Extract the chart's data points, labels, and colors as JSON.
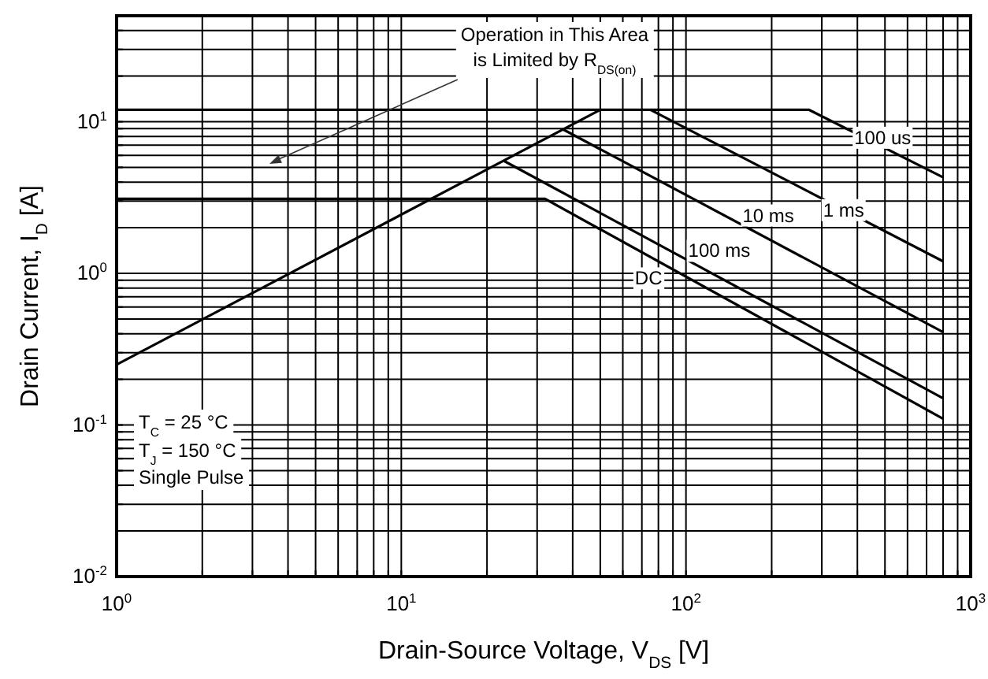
{
  "chart_data": {
    "type": "line",
    "xlabel": "Drain-Source Voltage, V$_{DS}$ [V]",
    "ylabel": "Drain Current, I$_{D}$ [A]",
    "log": "xy",
    "grid": true,
    "marker": "none",
    "line_style": "solid",
    "xlim": [
      1,
      1000
    ],
    "ylim": [
      0.01,
      50
    ],
    "xticks": [
      {
        "value": 1,
        "label": "10$^{0}$"
      },
      {
        "value": 2,
        "label": null
      },
      {
        "value": 3,
        "label": null
      },
      {
        "value": 4,
        "label": null
      },
      {
        "value": 5,
        "label": null
      },
      {
        "value": 6,
        "label": null
      },
      {
        "value": 7,
        "label": null
      },
      {
        "value": 8,
        "label": null
      },
      {
        "value": 9,
        "label": null
      },
      {
        "value": 10,
        "label": "10$^{1}$"
      },
      {
        "value": 20,
        "label": null
      },
      {
        "value": 30,
        "label": null
      },
      {
        "value": 40,
        "label": null
      },
      {
        "value": 50,
        "label": null
      },
      {
        "value": 60,
        "label": null
      },
      {
        "value": 70,
        "label": null
      },
      {
        "value": 80,
        "label": null
      },
      {
        "value": 90,
        "label": null
      },
      {
        "value": 100,
        "label": "10$^{2}$"
      },
      {
        "value": 200,
        "label": null
      },
      {
        "value": 300,
        "label": null
      },
      {
        "value": 400,
        "label": null
      },
      {
        "value": 500,
        "label": null
      },
      {
        "value": 600,
        "label": null
      },
      {
        "value": 700,
        "label": null
      },
      {
        "value": 800,
        "label": null
      },
      {
        "value": 900,
        "label": null
      },
      {
        "value": 1000,
        "label": "10$^{3}$"
      }
    ],
    "yticks": [
      {
        "value": 0.01,
        "label": "10$^{-2}$"
      },
      {
        "value": 0.02,
        "label": null
      },
      {
        "value": 0.03,
        "label": null
      },
      {
        "value": 0.04,
        "label": null
      },
      {
        "value": 0.05,
        "label": null
      },
      {
        "value": 0.06,
        "label": null
      },
      {
        "value": 0.07,
        "label": null
      },
      {
        "value": 0.08,
        "label": null
      },
      {
        "value": 0.09,
        "label": null
      },
      {
        "value": 0.1,
        "label": "10$^{-1}$"
      },
      {
        "value": 0.2,
        "label": null
      },
      {
        "value": 0.3,
        "label": null
      },
      {
        "value": 0.4,
        "label": null
      },
      {
        "value": 0.5,
        "label": null
      },
      {
        "value": 0.6,
        "label": null
      },
      {
        "value": 0.7,
        "label": null
      },
      {
        "value": 0.8,
        "label": null
      },
      {
        "value": 0.9,
        "label": null
      },
      {
        "value": 1,
        "label": "10$^{0}$"
      },
      {
        "value": 2,
        "label": null
      },
      {
        "value": 3,
        "label": null
      },
      {
        "value": 4,
        "label": null
      },
      {
        "value": 5,
        "label": null
      },
      {
        "value": 6,
        "label": null
      },
      {
        "value": 7,
        "label": null
      },
      {
        "value": 8,
        "label": null
      },
      {
        "value": 9,
        "label": null
      },
      {
        "value": 10,
        "label": "10$^{1}$"
      },
      {
        "value": 20,
        "label": null
      },
      {
        "value": 30,
        "label": null
      },
      {
        "value": 40,
        "label": null
      }
    ],
    "series": [
      {
        "color": "#000000",
        "x": [
          1,
          50
        ],
        "values": [
          0.25,
          12
        ]
      },
      {
        "name": "100 us",
        "color": "#000000",
        "x": [
          1,
          270,
          800
        ],
        "values": [
          12,
          12,
          4.3
        ]
      },
      {
        "name": "1 ms",
        "color": "#000000",
        "x": [
          75,
          800
        ],
        "values": [
          12,
          1.2
        ]
      },
      {
        "name": "10 ms",
        "color": "#000000",
        "x": [
          37,
          800
        ],
        "values": [
          8.9,
          0.41
        ]
      },
      {
        "name": "100 ms",
        "color": "#000000",
        "x": [
          23,
          800
        ],
        "values": [
          5.5,
          0.15
        ]
      },
      {
        "name": "DC",
        "color": "#000000",
        "x": [
          1,
          32,
          800
        ],
        "values": [
          3.1,
          3.1,
          0.11
        ]
      }
    ],
    "annotations": [
      "Operation in This Area is Limited by R$_{DS(on)}$",
      "T$_{C}$ = 25 °C",
      "T$_{J}$ = 150 °C",
      "Single Pulse"
    ]
  }
}
